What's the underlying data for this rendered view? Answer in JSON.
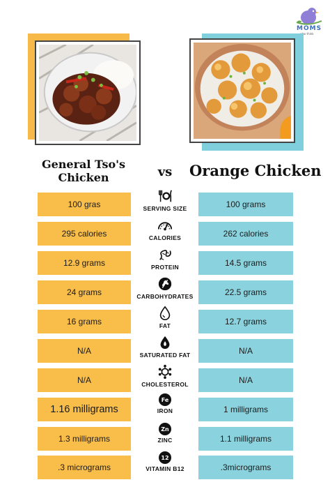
{
  "logo": {
    "text": "MOMS",
    "subtext": "who think",
    "icon": "bird-logo-icon"
  },
  "left": {
    "title": "General Tso's Chicken",
    "color": "#f9bd4a",
    "image": "general-tso-chicken-photo"
  },
  "vs": "vs",
  "right": {
    "title": "Orange Chicken",
    "color": "#8ad3de",
    "image": "orange-chicken-photo"
  },
  "rows": [
    {
      "label": "SERVING SIZE",
      "icon": "fork-plate-knife-icon",
      "left": "100 gras",
      "right": "100 grams"
    },
    {
      "label": "CALORIES",
      "icon": "gauge-icon",
      "left": "295 calories",
      "right": "262 calories"
    },
    {
      "label": "PROTEIN",
      "icon": "protein-chain-icon",
      "left": "12.9 grams",
      "right": "14.5 grams"
    },
    {
      "label": "CARBOHYDRATES",
      "icon": "wheat-icon",
      "left": "24 grams",
      "right": "22.5 grams"
    },
    {
      "label": "FAT",
      "icon": "drop-icon",
      "left": "16 grams",
      "right": "12.7 grams"
    },
    {
      "label": "SATURATED FAT",
      "icon": "drop-flame-icon",
      "left": "N/A",
      "right": "N/A"
    },
    {
      "label": "CHOLESTEROL",
      "icon": "molecule-icon",
      "left": "N/A",
      "right": "N/A"
    },
    {
      "label": "IRON",
      "icon": "iron-badge-icon",
      "badge": "Fe",
      "left": "1.16 milligrams",
      "right": "1 milligrams"
    },
    {
      "label": "ZINC",
      "icon": "zinc-badge-icon",
      "badge": "Zn",
      "left": "1.3 milligrams",
      "right": "1.1 milligrams"
    },
    {
      "label": "VITAMIN B12",
      "icon": "b12-badge-icon",
      "badge": "12",
      "left": ".3 micrograms",
      "right": ".3micrograms"
    }
  ]
}
